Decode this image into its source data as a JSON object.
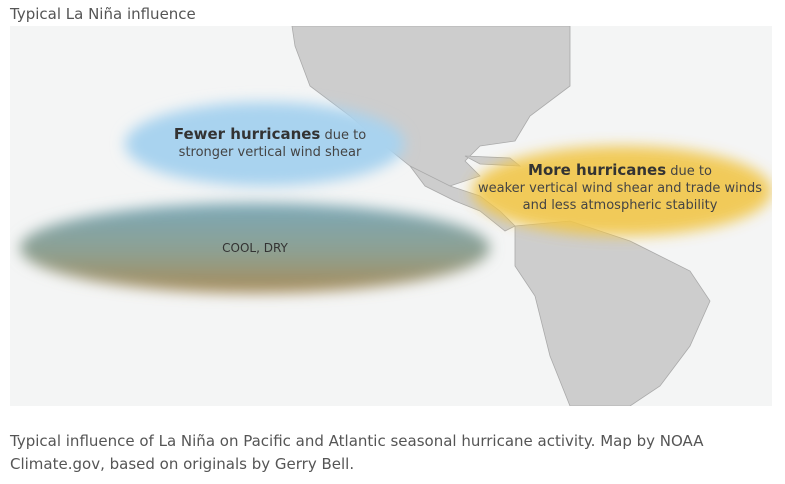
{
  "title": "Typical La Niña influence",
  "map": {
    "pacific_label": {
      "bold": "Fewer hurricanes",
      "rest1": " due to",
      "rest2": "stronger vertical wind shear"
    },
    "atlantic_label": {
      "bold": "More hurricanes",
      "rest1": " due to",
      "rest2": "weaker vertical wind shear and trade winds",
      "rest3": "and less atmospheric stability"
    },
    "cool_dry_label": "COOL, DRY",
    "colors": {
      "blue": "#a9d3ef",
      "yellow": "#f1c64a",
      "cool_dry_top": "#7aa4b0",
      "cool_dry_bottom": "#a58d5e",
      "land": "#c9c9c9"
    }
  },
  "caption": "Typical influence of La Niña on Pacific and Atlantic seasonal hurricane activity. Map by NOAA Climate.gov, based on originals by Gerry Bell."
}
